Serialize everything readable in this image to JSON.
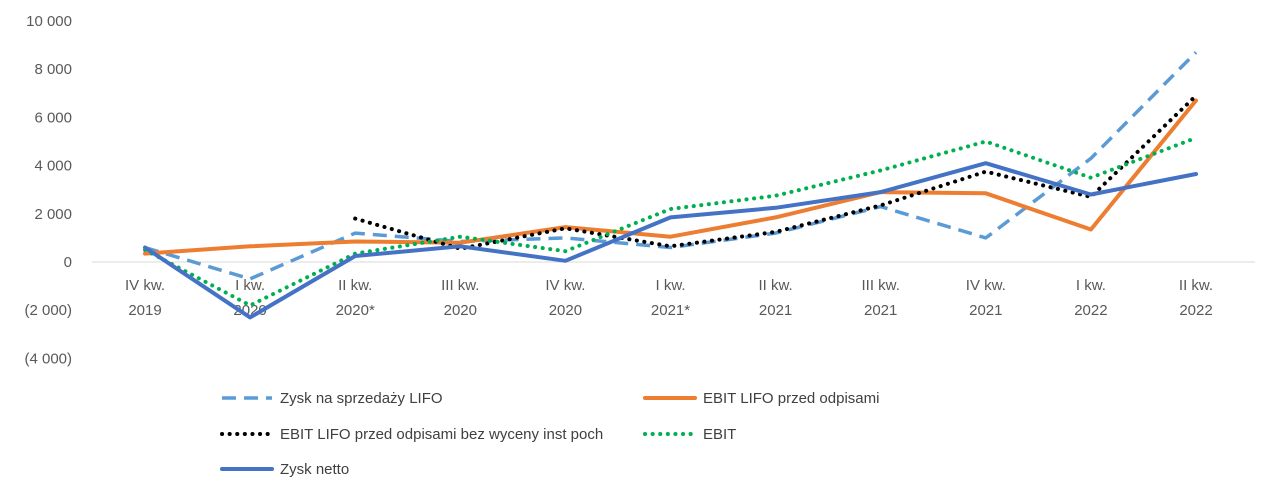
{
  "chart_data": {
    "type": "line",
    "title": "",
    "xlabel": "",
    "ylabel": "",
    "categories": [
      [
        "IV kw.",
        "2019"
      ],
      [
        "I kw.",
        "2020"
      ],
      [
        "II kw.",
        "2020*"
      ],
      [
        "III kw.",
        "2020"
      ],
      [
        "IV kw.",
        "2020"
      ],
      [
        "I kw.",
        "2021*"
      ],
      [
        "II kw.",
        "2021"
      ],
      [
        "III kw.",
        "2021"
      ],
      [
        "IV kw.",
        "2021"
      ],
      [
        "I kw.",
        "2022"
      ],
      [
        "II kw.",
        "2022"
      ]
    ],
    "ylim": [
      -4000,
      10000
    ],
    "yticks": [
      -4000,
      -2000,
      0,
      2000,
      4000,
      6000,
      8000,
      10000
    ],
    "ytick_labels": [
      "(4 000)",
      "(2 000)",
      "0",
      "2 000",
      "4 000",
      "6 000",
      "8 000",
      "10 000"
    ],
    "grid": false,
    "legend_position": "bottom",
    "series": [
      {
        "name": "Zysk na sprzedaży LIFO",
        "color": "#5B9BD5",
        "style": "dashed",
        "values": [
          600,
          -700,
          1200,
          850,
          1000,
          600,
          1200,
          2300,
          1000,
          4300,
          8700
        ]
      },
      {
        "name": "EBIT LIFO przed odpisami",
        "color": "#ED7D31",
        "style": "solid",
        "values": [
          350,
          650,
          850,
          800,
          1450,
          1050,
          1850,
          2900,
          2850,
          1350,
          6700
        ]
      },
      {
        "name": "EBIT LIFO przed odpisami bez wyceny inst poch",
        "color": "#000000",
        "style": "dotted",
        "values": [
          null,
          null,
          1800,
          550,
          1400,
          650,
          1250,
          2350,
          3750,
          2700,
          6900
        ]
      },
      {
        "name": "EBIT",
        "color": "#00B050",
        "style": "dotted",
        "values": [
          500,
          -1800,
          350,
          1050,
          450,
          2200,
          2750,
          3800,
          5000,
          3500,
          5150
        ]
      },
      {
        "name": "Zysk netto",
        "color": "#4472C4",
        "style": "solid",
        "values": [
          600,
          -2300,
          250,
          650,
          50,
          1850,
          2250,
          2900,
          4100,
          2800,
          3650
        ]
      }
    ]
  }
}
